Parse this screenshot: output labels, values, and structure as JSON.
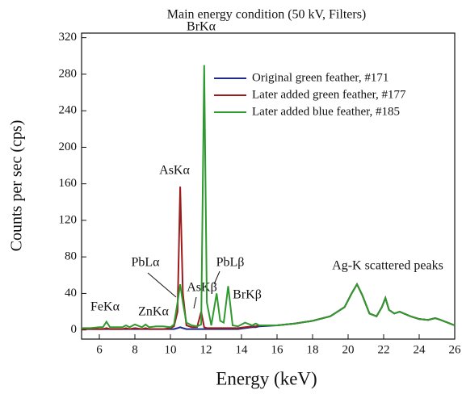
{
  "chart_data": {
    "type": "line",
    "title": "Main energy condition (50 kV, Filters)",
    "x_label": "Energy (keV)",
    "y_label": "Counts per sec (cps)",
    "x": [
      5,
      5.5,
      6,
      6.2,
      6.4,
      6.6,
      7,
      7.3,
      7.5,
      7.7,
      8,
      8.4,
      8.6,
      8.8,
      9.2,
      9.6,
      10,
      10.2,
      10.4,
      10.55,
      10.7,
      10.9,
      11.2,
      11.5,
      11.73,
      11.9,
      12.05,
      12.3,
      12.6,
      12.8,
      13.0,
      13.25,
      13.5,
      13.8,
      14.2,
      14.6,
      14.8,
      15.0,
      16,
      17,
      18,
      19,
      19.8,
      20.2,
      20.5,
      20.8,
      21.2,
      21.6,
      21.9,
      22.1,
      22.3,
      22.6,
      22.9,
      23.5,
      24,
      24.5,
      24.9,
      25.2,
      25.6,
      26
    ],
    "series": [
      {
        "name": "Original green feather, #171",
        "color": "#1f2a8c",
        "values": [
          1,
          1,
          1,
          1,
          1,
          1,
          1,
          1,
          1,
          1,
          1,
          1,
          1,
          1,
          1,
          1,
          1,
          1,
          2,
          3,
          2,
          1,
          1,
          1,
          1,
          1,
          1,
          1,
          1,
          1,
          1,
          1,
          1,
          1,
          2,
          3,
          3,
          4,
          5,
          7,
          10,
          15,
          25,
          40,
          50,
          38,
          18,
          15,
          25,
          35,
          22,
          18,
          20,
          15,
          12,
          11,
          13,
          11,
          8,
          5
        ]
      },
      {
        "name": "Later added green feather, #177",
        "color": "#9b1c1c",
        "values": [
          1,
          1,
          1,
          1,
          2,
          1,
          1,
          1,
          2,
          1,
          2,
          1,
          2,
          1,
          1,
          1,
          2,
          4,
          20,
          157,
          40,
          5,
          3,
          3,
          20,
          3,
          2,
          2,
          2,
          2,
          2,
          2,
          2,
          2,
          3,
          4,
          4,
          5,
          5,
          7,
          10,
          15,
          25,
          40,
          50,
          38,
          18,
          15,
          25,
          35,
          22,
          18,
          20,
          15,
          12,
          11,
          13,
          11,
          8,
          5
        ]
      },
      {
        "name": "Later added blue feather, #185",
        "color": "#2e9a2e",
        "values": [
          2,
          2,
          3,
          3,
          9,
          3,
          3,
          3,
          5,
          3,
          6,
          3,
          6,
          3,
          4,
          4,
          3,
          6,
          30,
          50,
          30,
          8,
          5,
          4,
          6,
          290,
          30,
          5,
          40,
          10,
          8,
          48,
          5,
          4,
          8,
          5,
          7,
          5,
          5,
          7,
          10,
          15,
          25,
          40,
          50,
          38,
          18,
          15,
          25,
          35,
          22,
          18,
          20,
          15,
          12,
          11,
          13,
          11,
          8,
          5
        ]
      }
    ],
    "xlim": [
      5,
      26
    ],
    "xticks": [
      6,
      8,
      10,
      12,
      14,
      16,
      18,
      20,
      22,
      24,
      26
    ],
    "ylim": [
      -10,
      325
    ],
    "yticks": [
      0,
      40,
      80,
      120,
      160,
      200,
      240,
      280,
      320
    ],
    "annotations": [
      "BrKα",
      "AsKα",
      "PbLα",
      "AsKβ",
      "PbLβ",
      "BrKβ",
      "FeKα",
      "ZnKα",
      "Ag-K scattered peaks"
    ]
  }
}
